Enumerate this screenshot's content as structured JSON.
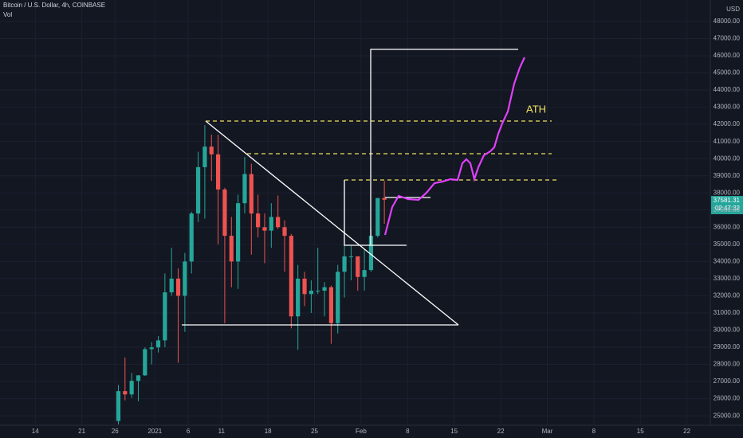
{
  "header": {
    "title": "Bitcoin / U.S. Dollar, 4h, COINBASE",
    "indicator": "Vol",
    "currency": "USD"
  },
  "annotation": "ATH",
  "price_tag": {
    "price": "37581.31",
    "countdown": "02:47:32"
  },
  "chart_data": {
    "type": "candlestick",
    "up_color": "#26a69a",
    "down_color": "#ef5350",
    "grid": true,
    "xlim": [
      -5.3,
      101.4
    ],
    "ylim": [
      24450,
      49250
    ],
    "xticks": [
      {
        "value": 0,
        "label": "14"
      },
      {
        "value": 7,
        "label": "21"
      },
      {
        "value": 12,
        "label": "26"
      },
      {
        "value": 18,
        "label": "2021"
      },
      {
        "value": 23,
        "label": "6"
      },
      {
        "value": 28,
        "label": "11"
      },
      {
        "value": 35,
        "label": "18"
      },
      {
        "value": 42,
        "label": "25"
      },
      {
        "value": 49,
        "label": "Feb"
      },
      {
        "value": 56,
        "label": "8"
      },
      {
        "value": 63,
        "label": "15"
      },
      {
        "value": 70,
        "label": "22"
      },
      {
        "value": 77,
        "label": "Mar"
      },
      {
        "value": 84,
        "label": "8"
      },
      {
        "value": 91,
        "label": "15"
      },
      {
        "value": 98,
        "label": "22"
      }
    ],
    "yticks": [
      {
        "value": 25000,
        "label": "25000.00"
      },
      {
        "value": 26000,
        "label": "26000.00"
      },
      {
        "value": 27000,
        "label": "27000.00"
      },
      {
        "value": 28000,
        "label": "28000.00"
      },
      {
        "value": 29000,
        "label": "29000.00"
      },
      {
        "value": 30000,
        "label": "30000.00"
      },
      {
        "value": 31000,
        "label": "31000.00"
      },
      {
        "value": 32000,
        "label": "32000.00"
      },
      {
        "value": 33000,
        "label": "33000.00"
      },
      {
        "value": 34000,
        "label": "34000.00"
      },
      {
        "value": 35000,
        "label": "35000.00"
      },
      {
        "value": 36000,
        "label": "36000.00"
      },
      {
        "value": 37000,
        "label": "37000.00"
      },
      {
        "value": 38000,
        "label": "38000.00"
      },
      {
        "value": 39000,
        "label": "39000.00"
      },
      {
        "value": 40000,
        "label": "40000.00"
      },
      {
        "value": 41000,
        "label": "41000.00"
      },
      {
        "value": 42000,
        "label": "42000.00"
      },
      {
        "value": 43000,
        "label": "43000.00"
      },
      {
        "value": 44000,
        "label": "44000.00"
      },
      {
        "value": 45000,
        "label": "45000.00"
      },
      {
        "value": 46000,
        "label": "46000.00"
      },
      {
        "value": 47000,
        "label": "47000.00"
      },
      {
        "value": 48000,
        "label": "48000.00"
      }
    ],
    "x": [
      12.5,
      13.5,
      14.5,
      15.5,
      16.5,
      17.5,
      18.5,
      19.5,
      20.5,
      21.5,
      22.5,
      23.5,
      24.5,
      25.5,
      26.5,
      27.5,
      28.5,
      29.5,
      30.5,
      31.5,
      32.5,
      33.5,
      34.5,
      35.5,
      36.5,
      37.5,
      38.5,
      39.5,
      40.5,
      41.5,
      42.5,
      43.5,
      44.5,
      45.5,
      46.5,
      47.5,
      48.5,
      49.5,
      50.5,
      51.5,
      52.5
    ],
    "open": [
      24700,
      26440,
      26250,
      27040,
      27360,
      28890,
      28990,
      29400,
      32200,
      33000,
      32000,
      34000,
      36800,
      39500,
      40700,
      40250,
      38200,
      35500,
      34000,
      37400,
      39100,
      36800,
      36000,
      35800,
      36600,
      36000,
      35500,
      30800,
      33000,
      32100,
      32300,
      32300,
      32500,
      30400,
      33400,
      34300,
      34300,
      33100,
      33500,
      35500,
      37700
    ],
    "high": [
      26800,
      28400,
      27500,
      27370,
      28990,
      29300,
      29650,
      33300,
      34800,
      33600,
      34500,
      36900,
      40400,
      41950,
      41400,
      41400,
      38300,
      36600,
      37900,
      40100,
      39700,
      37900,
      36800,
      37400,
      37850,
      36400,
      35600,
      33800,
      33400,
      32900,
      34800,
      32800,
      32600,
      33800,
      38500,
      34900,
      34300,
      34700,
      35900,
      37700,
      38700
    ],
    "low": [
      24500,
      25900,
      26050,
      25850,
      27330,
      28000,
      28690,
      29000,
      32000,
      28100,
      29900,
      33300,
      36300,
      36500,
      38700,
      35000,
      30400,
      32500,
      32400,
      36800,
      34400,
      35400,
      33900,
      34800,
      35900,
      33400,
      30100,
      28850,
      31400,
      31000,
      32100,
      30800,
      29200,
      29800,
      31900,
      32900,
      32300,
      32300,
      33400,
      35400,
      36200
    ],
    "close": [
      26440,
      26250,
      27040,
      27360,
      28890,
      28990,
      29400,
      32200,
      33000,
      32000,
      34000,
      36800,
      39500,
      40700,
      40250,
      38200,
      35500,
      34000,
      37400,
      39100,
      36800,
      36000,
      35800,
      36600,
      36000,
      35500,
      30800,
      33000,
      32100,
      32300,
      32300,
      32500,
      30400,
      33400,
      34300,
      34300,
      33100,
      33500,
      35500,
      37700,
      37600
    ]
  }
}
